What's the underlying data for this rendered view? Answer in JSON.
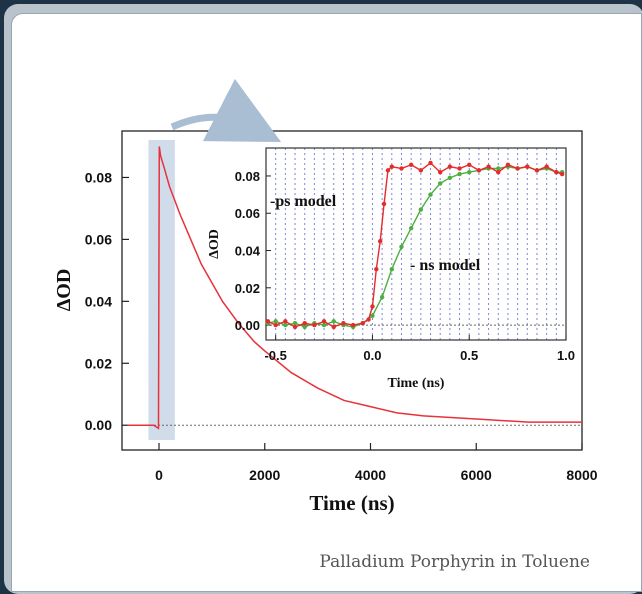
{
  "caption": "Palladium Porphyrin in Toluene",
  "colors": {
    "decay": "#e8313a",
    "ps_model": "#e52b2b",
    "ns_model": "#4caf3f",
    "highlight": "#c9d6e8",
    "arrow": "#a9bdd3"
  },
  "chart_data": [
    {
      "type": "line",
      "title": "",
      "xlabel": "Time (ns)",
      "ylabel": "ΔOD",
      "xlim": [
        -700,
        8000
      ],
      "ylim": [
        -0.008,
        0.095
      ],
      "xticks": [
        0,
        2000,
        4000,
        6000,
        8000
      ],
      "xtick_labels": [
        "0",
        "2000",
        "4000",
        "6000",
        "8000"
      ],
      "yticks": [
        0.0,
        0.02,
        0.04,
        0.06,
        0.08
      ],
      "ytick_labels": [
        "0.00",
        "0.02",
        "0.04",
        "0.06",
        "0.08"
      ],
      "highlight_x_range": [
        -200,
        300
      ],
      "series": [
        {
          "color": "#e8313a",
          "x": [
            -600,
            -300,
            -100,
            -10,
            5,
            30,
            100,
            200,
            400,
            600,
            800,
            1000,
            1200,
            1500,
            1800,
            2000,
            2500,
            3000,
            3500,
            4000,
            4500,
            5000,
            6000,
            7000,
            8000
          ],
          "y": [
            0.0,
            0.0,
            0.0,
            -0.001,
            0.09,
            0.087,
            0.083,
            0.077,
            0.068,
            0.06,
            0.052,
            0.046,
            0.04,
            0.033,
            0.027,
            0.024,
            0.017,
            0.012,
            0.008,
            0.006,
            0.004,
            0.003,
            0.002,
            0.001,
            0.001
          ]
        }
      ]
    },
    {
      "type": "line",
      "title": "",
      "xlabel": "Time (ns)",
      "ylabel": "ΔOD",
      "xlim": [
        -0.55,
        1.0
      ],
      "ylim": [
        -0.008,
        0.095
      ],
      "xticks": [
        -0.5,
        0.0,
        0.5,
        1.0
      ],
      "xtick_labels": [
        "-0.5",
        "0.0",
        "0.5",
        "1.0"
      ],
      "yticks": [
        0.0,
        0.02,
        0.04,
        0.06,
        0.08
      ],
      "ytick_labels": [
        "0.00",
        "0.02",
        "0.04",
        "0.06",
        "0.08"
      ],
      "grid_x_lines": [
        -0.5,
        -0.45,
        -0.4,
        -0.35,
        -0.3,
        -0.25,
        -0.2,
        -0.15,
        -0.1,
        -0.05,
        0.0,
        0.05,
        0.1,
        0.15,
        0.2,
        0.25,
        0.3,
        0.35,
        0.4,
        0.45,
        0.5,
        0.55,
        0.6,
        0.65,
        0.7,
        0.75,
        0.8,
        0.85,
        0.9,
        0.95
      ],
      "annotations": [
        {
          "text": "-ps model",
          "color": "#e52b2b"
        },
        {
          "text": "- ns model",
          "color": "#4caf3f"
        }
      ],
      "series": [
        {
          "color": "#e52b2b",
          "x": [
            -0.54,
            -0.5,
            -0.45,
            -0.4,
            -0.35,
            -0.3,
            -0.25,
            -0.2,
            -0.15,
            -0.1,
            -0.05,
            -0.02,
            0.0,
            0.02,
            0.04,
            0.06,
            0.08,
            0.1,
            0.15,
            0.2,
            0.25,
            0.3,
            0.35,
            0.4,
            0.45,
            0.5,
            0.55,
            0.6,
            0.65,
            0.7,
            0.75,
            0.8,
            0.85,
            0.9,
            0.95,
            0.98
          ],
          "y": [
            0.002,
            0.0,
            0.002,
            -0.001,
            0.001,
            0.0,
            0.002,
            -0.001,
            0.001,
            0.0,
            0.001,
            0.003,
            0.01,
            0.03,
            0.045,
            0.065,
            0.083,
            0.085,
            0.084,
            0.086,
            0.083,
            0.087,
            0.082,
            0.085,
            0.084,
            0.086,
            0.083,
            0.085,
            0.082,
            0.086,
            0.084,
            0.085,
            0.083,
            0.085,
            0.082,
            0.081
          ]
        },
        {
          "color": "#4caf3f",
          "x": [
            -0.54,
            -0.5,
            -0.45,
            -0.4,
            -0.35,
            -0.3,
            -0.25,
            -0.2,
            -0.15,
            -0.1,
            -0.05,
            0.0,
            0.05,
            0.1,
            0.15,
            0.2,
            0.25,
            0.3,
            0.35,
            0.4,
            0.45,
            0.5,
            0.55,
            0.6,
            0.65,
            0.7,
            0.75,
            0.8,
            0.85,
            0.9,
            0.95,
            0.98
          ],
          "y": [
            0.001,
            0.002,
            0.0,
            0.001,
            -0.001,
            0.001,
            0.0,
            0.002,
            0.0,
            -0.001,
            0.001,
            0.005,
            0.015,
            0.03,
            0.042,
            0.052,
            0.062,
            0.07,
            0.076,
            0.079,
            0.081,
            0.082,
            0.083,
            0.084,
            0.084,
            0.085,
            0.084,
            0.085,
            0.083,
            0.084,
            0.082,
            0.082
          ]
        }
      ]
    }
  ]
}
